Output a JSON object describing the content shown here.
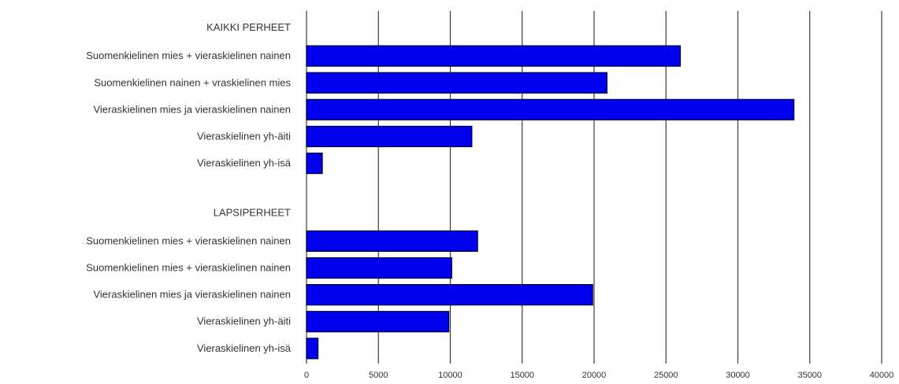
{
  "chart_data": {
    "type": "bar",
    "orientation": "horizontal",
    "title": "",
    "xlabel": "",
    "ylabel": "",
    "xlim": [
      0,
      40000
    ],
    "x_ticks": [
      0,
      5000,
      10000,
      15000,
      20000,
      25000,
      30000,
      35000,
      40000
    ],
    "grid": "vertical",
    "legend": "none",
    "bar_color": "#0000ee",
    "groups": [
      {
        "label": "KAIKKI PERHEET",
        "categories": [
          "Suomenkielinen mies + vieraskielinen nainen",
          "Suomenkielinen nainen + vraskielinen mies",
          "Vieraskielinen mies ja vieraskielinen nainen",
          "Vieraskielinen yh-äiti",
          "Vieraskielinen yh-isä"
        ],
        "values": [
          26000,
          20900,
          33900,
          11500,
          1100
        ]
      },
      {
        "label": "LAPSIPERHEET",
        "categories": [
          "Suomenkielinen mies + vieraskielinen nainen",
          "Suomenkielinen mies + vieraskielinen nainen",
          "Vieraskielinen mies ja vieraskielinen nainen",
          "Vieraskielinen yh-äiti",
          "Vieraskielinen yh-isä"
        ],
        "values": [
          11900,
          10100,
          19900,
          9900,
          800
        ]
      }
    ]
  }
}
